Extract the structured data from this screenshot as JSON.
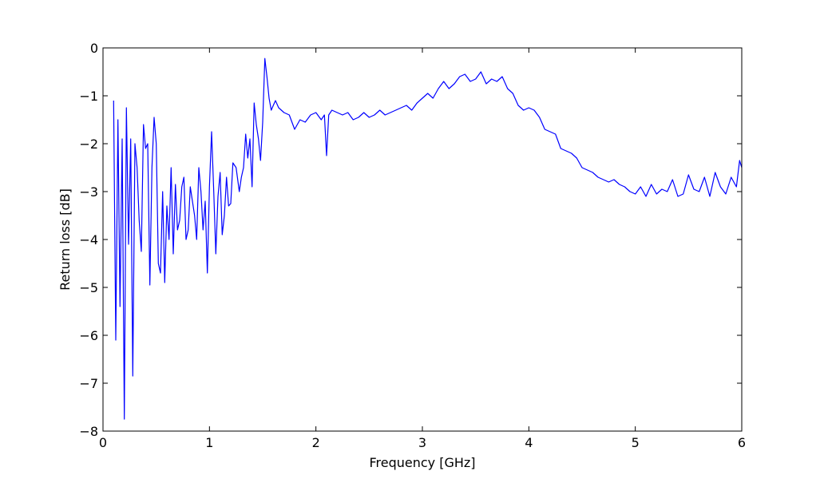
{
  "chart_data": {
    "type": "line",
    "title": "",
    "xlabel": "Frequency [GHz]",
    "ylabel": "Return loss [dB]",
    "xlim": [
      0,
      6
    ],
    "ylim": [
      -8,
      0
    ],
    "xticks": [
      0,
      1,
      2,
      3,
      4,
      5,
      6
    ],
    "xtick_labels": [
      "0",
      "1",
      "2",
      "3",
      "4",
      "5",
      "6"
    ],
    "yticks": [
      -8,
      -7,
      -6,
      -5,
      -4,
      -3,
      -2,
      -1,
      0
    ],
    "ytick_labels": [
      "−8",
      "−7",
      "−6",
      "−5",
      "−4",
      "−3",
      "−2",
      "−1",
      "0"
    ],
    "grid": false,
    "legend": "none",
    "line_color": "#0000ff",
    "series": [
      {
        "x": [
          0.1,
          0.12,
          0.14,
          0.16,
          0.18,
          0.2,
          0.22,
          0.24,
          0.26,
          0.28,
          0.3,
          0.32,
          0.34,
          0.36,
          0.38,
          0.4,
          0.42,
          0.44,
          0.46,
          0.48,
          0.5,
          0.52,
          0.54,
          0.56,
          0.58,
          0.6,
          0.62,
          0.64,
          0.66,
          0.68,
          0.7,
          0.72,
          0.74,
          0.76,
          0.78,
          0.8,
          0.82,
          0.84,
          0.86,
          0.88,
          0.9,
          0.92,
          0.94,
          0.96,
          0.98,
          1.0,
          1.02,
          1.04,
          1.06,
          1.08,
          1.1,
          1.12,
          1.14,
          1.16,
          1.18,
          1.2,
          1.22,
          1.25,
          1.28,
          1.3,
          1.32,
          1.34,
          1.36,
          1.38,
          1.4,
          1.42,
          1.44,
          1.46,
          1.48,
          1.5,
          1.52,
          1.54,
          1.56,
          1.58,
          1.6,
          1.62,
          1.65,
          1.7,
          1.75,
          1.8,
          1.85,
          1.9,
          1.95,
          2.0,
          2.05,
          2.08,
          2.1,
          2.12,
          2.15,
          2.2,
          2.25,
          2.3,
          2.35,
          2.4,
          2.45,
          2.5,
          2.55,
          2.6,
          2.65,
          2.7,
          2.75,
          2.8,
          2.85,
          2.9,
          2.95,
          3.0,
          3.05,
          3.1,
          3.15,
          3.2,
          3.25,
          3.3,
          3.35,
          3.4,
          3.45,
          3.5,
          3.55,
          3.6,
          3.65,
          3.7,
          3.75,
          3.8,
          3.85,
          3.9,
          3.95,
          4.0,
          4.05,
          4.1,
          4.15,
          4.2,
          4.25,
          4.3,
          4.35,
          4.4,
          4.45,
          4.5,
          4.55,
          4.6,
          4.65,
          4.7,
          4.75,
          4.8,
          4.85,
          4.9,
          4.95,
          5.0,
          5.05,
          5.1,
          5.15,
          5.2,
          5.25,
          5.3,
          5.35,
          5.4,
          5.45,
          5.5,
          5.55,
          5.6,
          5.65,
          5.7,
          5.75,
          5.8,
          5.85,
          5.9,
          5.95,
          5.98,
          6.0
        ],
        "y": [
          -1.1,
          -6.1,
          -1.5,
          -5.4,
          -1.9,
          -7.75,
          -1.25,
          -4.1,
          -1.9,
          -6.85,
          -2.0,
          -2.5,
          -3.6,
          -4.25,
          -1.6,
          -2.1,
          -2.0,
          -4.95,
          -2.5,
          -1.45,
          -2.0,
          -4.5,
          -4.7,
          -3.0,
          -4.9,
          -3.3,
          -4.0,
          -2.5,
          -4.3,
          -2.85,
          -3.8,
          -3.6,
          -2.9,
          -2.7,
          -4.0,
          -3.8,
          -2.9,
          -3.2,
          -3.5,
          -4.0,
          -2.5,
          -3.0,
          -3.8,
          -3.2,
          -4.7,
          -2.9,
          -1.75,
          -3.0,
          -4.3,
          -3.1,
          -2.6,
          -3.9,
          -3.5,
          -2.7,
          -3.3,
          -3.25,
          -2.4,
          -2.5,
          -3.0,
          -2.7,
          -2.5,
          -1.8,
          -2.3,
          -1.9,
          -2.9,
          -1.15,
          -1.6,
          -1.9,
          -2.35,
          -1.55,
          -0.22,
          -0.6,
          -1.05,
          -1.3,
          -1.2,
          -1.1,
          -1.25,
          -1.35,
          -1.4,
          -1.7,
          -1.5,
          -1.55,
          -1.4,
          -1.35,
          -1.5,
          -1.4,
          -2.25,
          -1.4,
          -1.3,
          -1.35,
          -1.4,
          -1.35,
          -1.5,
          -1.45,
          -1.35,
          -1.45,
          -1.4,
          -1.3,
          -1.4,
          -1.35,
          -1.3,
          -1.25,
          -1.2,
          -1.3,
          -1.15,
          -1.05,
          -0.95,
          -1.05,
          -0.85,
          -0.7,
          -0.85,
          -0.75,
          -0.6,
          -0.55,
          -0.7,
          -0.65,
          -0.5,
          -0.75,
          -0.65,
          -0.7,
          -0.6,
          -0.85,
          -0.95,
          -1.2,
          -1.3,
          -1.25,
          -1.3,
          -1.45,
          -1.7,
          -1.75,
          -1.8,
          -2.1,
          -2.15,
          -2.2,
          -2.3,
          -2.5,
          -2.55,
          -2.6,
          -2.7,
          -2.75,
          -2.8,
          -2.75,
          -2.85,
          -2.9,
          -3.0,
          -3.05,
          -2.9,
          -3.1,
          -2.85,
          -3.05,
          -2.95,
          -3.0,
          -2.75,
          -3.1,
          -3.05,
          -2.65,
          -2.95,
          -3.0,
          -2.7,
          -3.1,
          -2.6,
          -2.9,
          -3.05,
          -2.7,
          -2.9,
          -2.35,
          -2.5
        ]
      }
    ]
  }
}
